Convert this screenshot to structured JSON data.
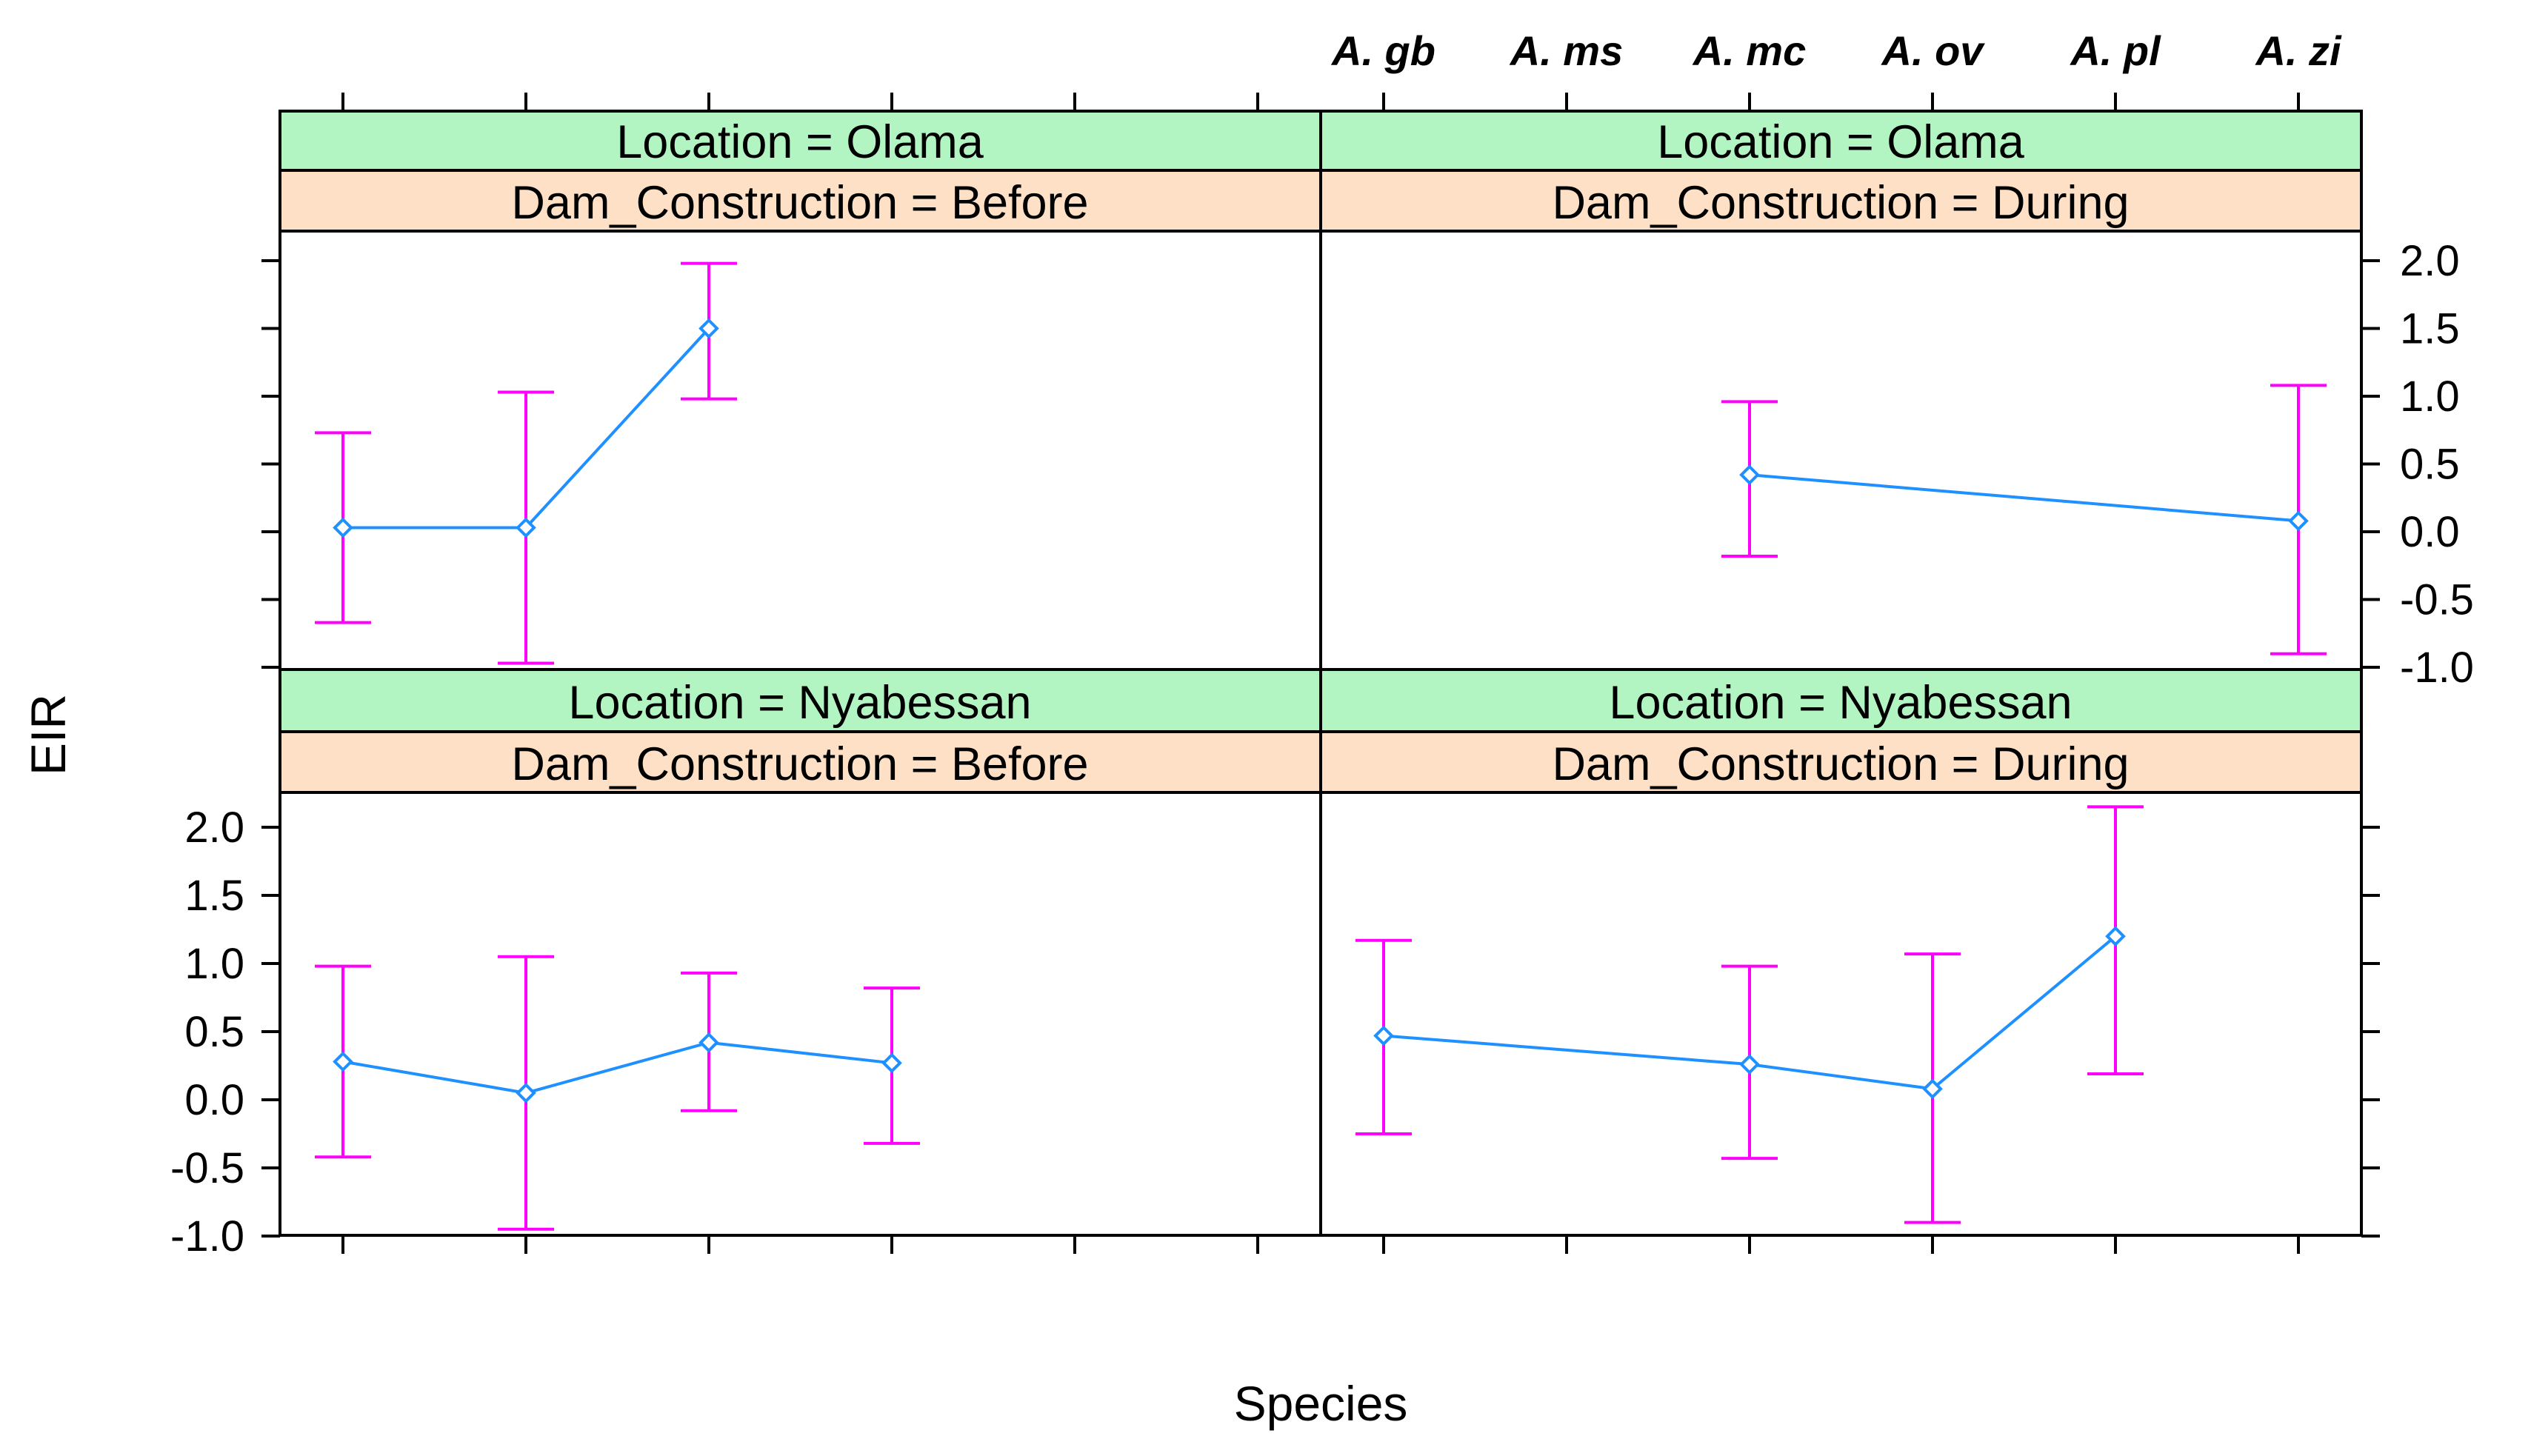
{
  "chart_data": {
    "type": "line",
    "xlabel": "Species",
    "ylabel": "EIR",
    "categories": [
      "A. gb",
      "A. ms",
      "A. mc",
      "A. ov",
      "A. pl",
      "A. zi"
    ],
    "ylim": [
      -1.0,
      2.0
    ],
    "yticks": [
      "-1.0",
      "-0.5",
      "0.0",
      "0.5",
      "1.0",
      "1.5",
      "2.0"
    ],
    "colors": {
      "line": "#1e90ff",
      "error_bar": "#ff00ff",
      "strip_location": "#b3f5c2",
      "strip_dam": "#fde0c5"
    },
    "panels": [
      {
        "location_strip": "Location = Olama",
        "dam_strip": "Dam_Construction = Before",
        "points": [
          {
            "species": "A. gb",
            "y": 0.03,
            "lower": -0.67,
            "upper": 0.73
          },
          {
            "species": "A. ms",
            "y": 0.03,
            "lower": -0.97,
            "upper": 1.03
          },
          {
            "species": "A. mc",
            "y": 1.5,
            "lower": 0.98,
            "upper": 1.98
          }
        ]
      },
      {
        "location_strip": "Location = Olama",
        "dam_strip": "Dam_Construction = During",
        "points": [
          {
            "species": "A. mc",
            "y": 0.42,
            "lower": -0.18,
            "upper": 0.96
          },
          {
            "species": "A. zi",
            "y": 0.08,
            "lower": -0.9,
            "upper": 1.08
          }
        ]
      },
      {
        "location_strip": "Location = Nyabessan",
        "dam_strip": "Dam_Construction = Before",
        "points": [
          {
            "species": "A. gb",
            "y": 0.28,
            "lower": -0.42,
            "upper": 0.98
          },
          {
            "species": "A. ms",
            "y": 0.05,
            "lower": -0.95,
            "upper": 1.05
          },
          {
            "species": "A. mc",
            "y": 0.42,
            "lower": -0.08,
            "upper": 0.93
          },
          {
            "species": "A. ov",
            "y": 0.27,
            "lower": -0.32,
            "upper": 0.82
          }
        ]
      },
      {
        "location_strip": "Location = Nyabessan",
        "dam_strip": "Dam_Construction = During",
        "points": [
          {
            "species": "A. gb",
            "y": 0.47,
            "lower": -0.25,
            "upper": 1.17
          },
          {
            "species": "A. mc",
            "y": 0.26,
            "lower": -0.43,
            "upper": 0.98
          },
          {
            "species": "A. ov",
            "y": 0.08,
            "lower": -0.9,
            "upper": 1.07
          },
          {
            "species": "A. pl",
            "y": 1.2,
            "lower": 0.19,
            "upper": 2.15
          }
        ]
      }
    ]
  }
}
